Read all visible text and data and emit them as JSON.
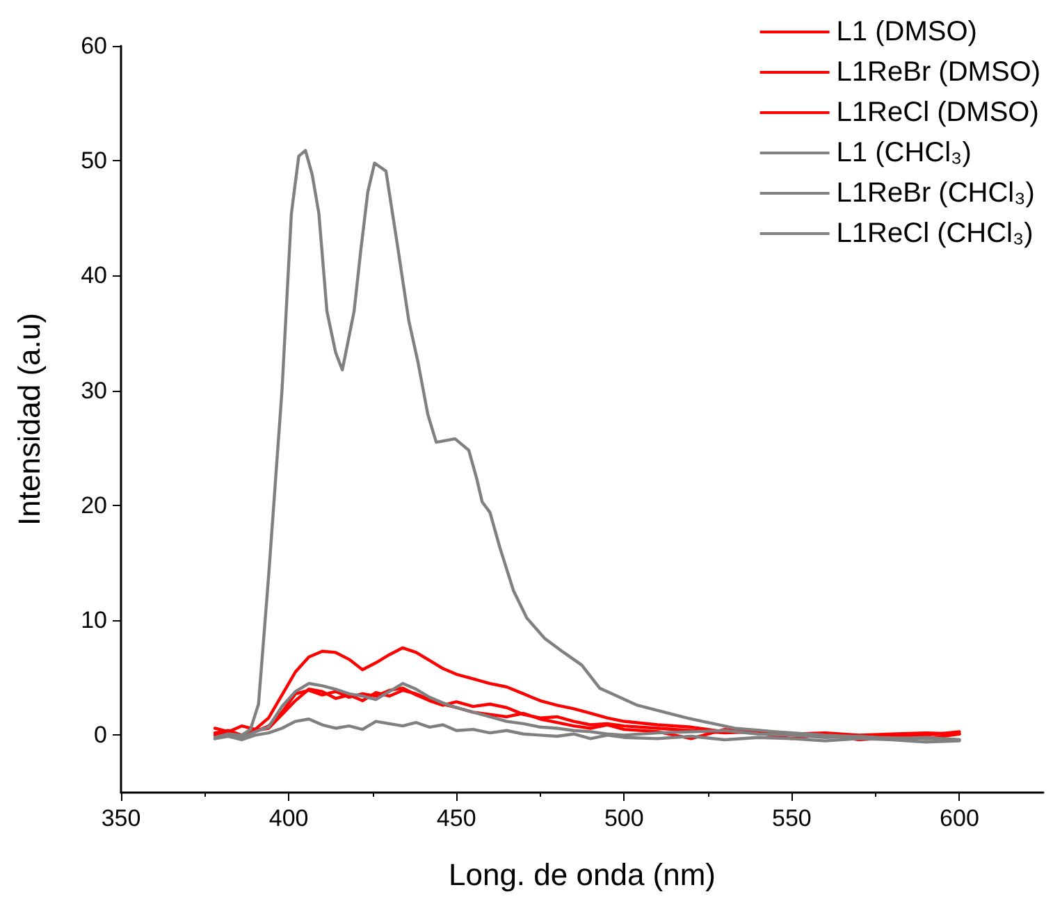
{
  "chart_data": {
    "type": "line",
    "xlabel": "Long. de onda (nm)",
    "ylabel": "Intensidad (a.u)",
    "xlim": [
      350,
      625
    ],
    "xticks": [
      350,
      400,
      450,
      500,
      550,
      600
    ],
    "ylim": [
      -5,
      60
    ],
    "yticks": [
      0,
      10,
      20,
      30,
      40,
      50,
      60
    ],
    "grid": false,
    "legend": "top right",
    "marker": "none",
    "line_style": "solid",
    "series": [
      {
        "name": "L1 (DMSO)",
        "color": "#ff0000",
        "x": [
          378,
          382,
          386,
          390,
          394,
          398,
          402,
          406,
          410,
          414,
          418,
          422,
          426,
          430,
          434,
          438,
          442,
          446,
          450,
          455,
          460,
          465,
          470,
          475,
          480,
          485,
          490,
          495,
          500,
          510,
          520,
          530,
          540,
          550,
          560,
          570,
          580,
          590,
          600
        ],
        "values": [
          0.6,
          0.3,
          0.8,
          0.5,
          1.5,
          3.5,
          5.5,
          6.8,
          7.3,
          7.2,
          6.6,
          5.7,
          6.3,
          7.0,
          7.6,
          7.2,
          6.5,
          5.8,
          5.3,
          4.9,
          4.5,
          4.2,
          3.6,
          3.0,
          2.6,
          2.3,
          1.9,
          1.5,
          1.2,
          0.9,
          0.7,
          0.3,
          0.4,
          0.1,
          0.2,
          0.0,
          0.1,
          0.2,
          0.1
        ]
      },
      {
        "name": "L1ReBr (DMSO)",
        "color": "#ff0000",
        "x": [
          378,
          382,
          386,
          390,
          394,
          398,
          402,
          406,
          410,
          414,
          418,
          422,
          426,
          430,
          434,
          438,
          442,
          446,
          450,
          455,
          460,
          465,
          470,
          475,
          480,
          485,
          490,
          495,
          500,
          510,
          520,
          530,
          540,
          550,
          560,
          570,
          580,
          590,
          600
        ],
        "values": [
          0.2,
          0.4,
          0.0,
          0.3,
          0.8,
          2.0,
          3.6,
          3.9,
          3.5,
          3.8,
          3.3,
          3.6,
          3.4,
          3.9,
          4.1,
          3.5,
          3.0,
          2.6,
          2.9,
          2.5,
          2.7,
          2.4,
          1.8,
          1.5,
          1.6,
          1.2,
          0.9,
          1.0,
          0.8,
          0.6,
          0.4,
          0.2,
          0.3,
          0.0,
          0.1,
          -0.2,
          0.0,
          -0.3,
          0.1
        ]
      },
      {
        "name": "L1ReCl (DMSO)",
        "color": "#ff0000",
        "x": [
          378,
          382,
          386,
          390,
          394,
          398,
          402,
          406,
          410,
          414,
          418,
          422,
          426,
          430,
          434,
          438,
          442,
          446,
          450,
          455,
          460,
          465,
          470,
          475,
          480,
          485,
          490,
          495,
          500,
          510,
          520,
          530,
          540,
          550,
          560,
          570,
          580,
          590,
          600
        ],
        "values": [
          0.0,
          0.2,
          -0.1,
          0.4,
          0.6,
          1.8,
          3.0,
          4.0,
          3.8,
          3.2,
          3.5,
          3.0,
          3.7,
          3.4,
          3.9,
          3.6,
          3.1,
          2.7,
          2.4,
          2.0,
          1.8,
          1.6,
          1.9,
          1.4,
          1.1,
          0.8,
          0.6,
          0.9,
          0.5,
          0.3,
          -0.3,
          0.5,
          0.2,
          -0.3,
          0.1,
          -0.4,
          -0.2,
          0.0,
          0.3
        ]
      },
      {
        "name": "L1 (CHCl₃)",
        "color": "#808080",
        "x": [
          378,
          382,
          386,
          388.6,
          391,
          394,
          396,
          398,
          400.8,
          403,
          405,
          407,
          409,
          411.4,
          414,
          416,
          419.5,
          421.5,
          423.6,
          425.6,
          429,
          432.5,
          435.8,
          438.6,
          441.5,
          444,
          449.6,
          453.7,
          456,
          457.7,
          460,
          463,
          467,
          471,
          476.4,
          482,
          487.4,
          492.7,
          504,
          518.7,
          533,
          545,
          560,
          575,
          590,
          600
        ],
        "values": [
          -0.2,
          0.1,
          0.0,
          0.5,
          2.7,
          13.8,
          21.9,
          30.0,
          45.4,
          50.4,
          50.9,
          48.8,
          45.4,
          36.9,
          33.3,
          31.8,
          36.9,
          42.2,
          47.3,
          49.8,
          49.1,
          42.5,
          36.1,
          32.4,
          27.9,
          25.5,
          25.8,
          24.8,
          22.4,
          20.3,
          19.4,
          16.3,
          12.6,
          10.2,
          8.4,
          7.2,
          6.1,
          4.1,
          2.6,
          1.5,
          0.6,
          0.3,
          0.0,
          -0.2,
          -0.3,
          -0.4
        ]
      },
      {
        "name": "L1ReBr (CHCl₃)",
        "color": "#808080",
        "x": [
          378,
          382,
          386,
          390,
          394,
          398,
          402,
          406,
          410,
          414,
          418,
          422,
          426,
          430,
          434,
          438,
          442,
          446,
          450,
          455,
          460,
          465,
          470,
          475,
          480,
          485,
          490,
          495,
          500,
          510,
          520,
          530,
          540,
          550,
          560,
          570,
          580,
          590,
          600
        ],
        "values": [
          -0.3,
          0.0,
          -0.2,
          0.3,
          0.7,
          2.5,
          3.8,
          4.5,
          4.3,
          4.0,
          3.6,
          3.4,
          3.1,
          3.8,
          4.5,
          4.0,
          3.3,
          2.8,
          2.4,
          2.0,
          1.6,
          1.2,
          1.0,
          0.7,
          0.6,
          0.4,
          0.3,
          0.1,
          0.0,
          0.2,
          0.3,
          0.4,
          0.1,
          0.0,
          -0.2,
          -0.1,
          -0.3,
          -0.2,
          -0.4
        ]
      },
      {
        "name": "L1ReCl (CHCl₃)",
        "color": "#808080",
        "x": [
          378,
          382,
          386,
          390,
          394,
          398,
          402,
          406,
          410,
          414,
          418,
          422,
          426,
          430,
          434,
          438,
          442,
          446,
          450,
          455,
          460,
          465,
          470,
          475,
          480,
          485,
          490,
          495,
          500,
          510,
          520,
          530,
          540,
          550,
          560,
          570,
          580,
          590,
          600
        ],
        "values": [
          -0.3,
          -0.1,
          -0.4,
          0.0,
          0.2,
          0.6,
          1.2,
          1.4,
          0.9,
          0.6,
          0.8,
          0.5,
          1.2,
          1.0,
          0.8,
          1.1,
          0.7,
          0.9,
          0.4,
          0.5,
          0.2,
          0.4,
          0.1,
          0.0,
          -0.1,
          0.1,
          -0.3,
          0.0,
          -0.2,
          -0.3,
          -0.1,
          -0.4,
          -0.2,
          -0.3,
          -0.5,
          -0.3,
          -0.4,
          -0.6,
          -0.5
        ]
      }
    ]
  }
}
